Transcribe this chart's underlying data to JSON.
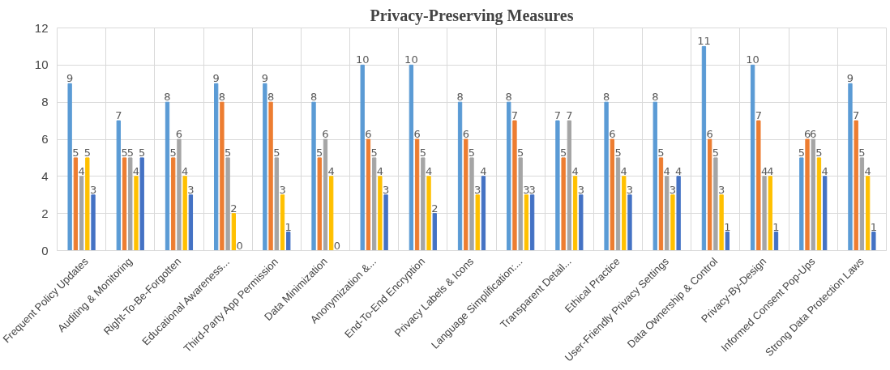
{
  "chart_data": {
    "type": "bar",
    "title": "Privacy-Preserving Measures",
    "categories": [
      "Frequent Policy Updates",
      "Auditing & Monitoring",
      "Right-To-Be-Forgotten",
      "Educational Awareness...",
      "Third-Party App Permission",
      "Data Minimization",
      "Anonymization &...",
      "End-To-End Encryption",
      "Privacy Labels & Icons",
      "Language Simplification:...",
      "Transparent Detail...",
      "Ethical Practice",
      "User-Friendly Privacy Settings",
      "Data Ownership & Control",
      "Privacy-By-Design",
      "Informed Consent Pop-Ups",
      "Strong Data Protection Laws"
    ],
    "series": [
      {
        "color": "#5b9bd5",
        "values": [
          9,
          7,
          8,
          9,
          9,
          8,
          10,
          10,
          8,
          8,
          7,
          8,
          8,
          11,
          10,
          5,
          9
        ]
      },
      {
        "color": "#ed7d31",
        "values": [
          5,
          5,
          5,
          8,
          8,
          5,
          6,
          6,
          6,
          7,
          5,
          6,
          5,
          6,
          7,
          6,
          7
        ]
      },
      {
        "color": "#a5a5a5",
        "values": [
          4,
          5,
          6,
          5,
          5,
          6,
          5,
          5,
          5,
          5,
          7,
          5,
          4,
          5,
          4,
          6,
          5
        ]
      },
      {
        "color": "#ffc000",
        "values": [
          5,
          4,
          4,
          2,
          3,
          4,
          4,
          4,
          3,
          3,
          4,
          4,
          3,
          3,
          4,
          5,
          4
        ]
      },
      {
        "color": "#4472c4",
        "values": [
          3,
          5,
          3,
          0,
          1,
          0,
          3,
          2,
          4,
          3,
          3,
          3,
          4,
          1,
          1,
          4,
          1
        ]
      }
    ],
    "ylim": [
      0,
      12
    ],
    "yticks": [
      0,
      2,
      4,
      6,
      8,
      10,
      12
    ],
    "grid": true,
    "data_labels": true
  }
}
